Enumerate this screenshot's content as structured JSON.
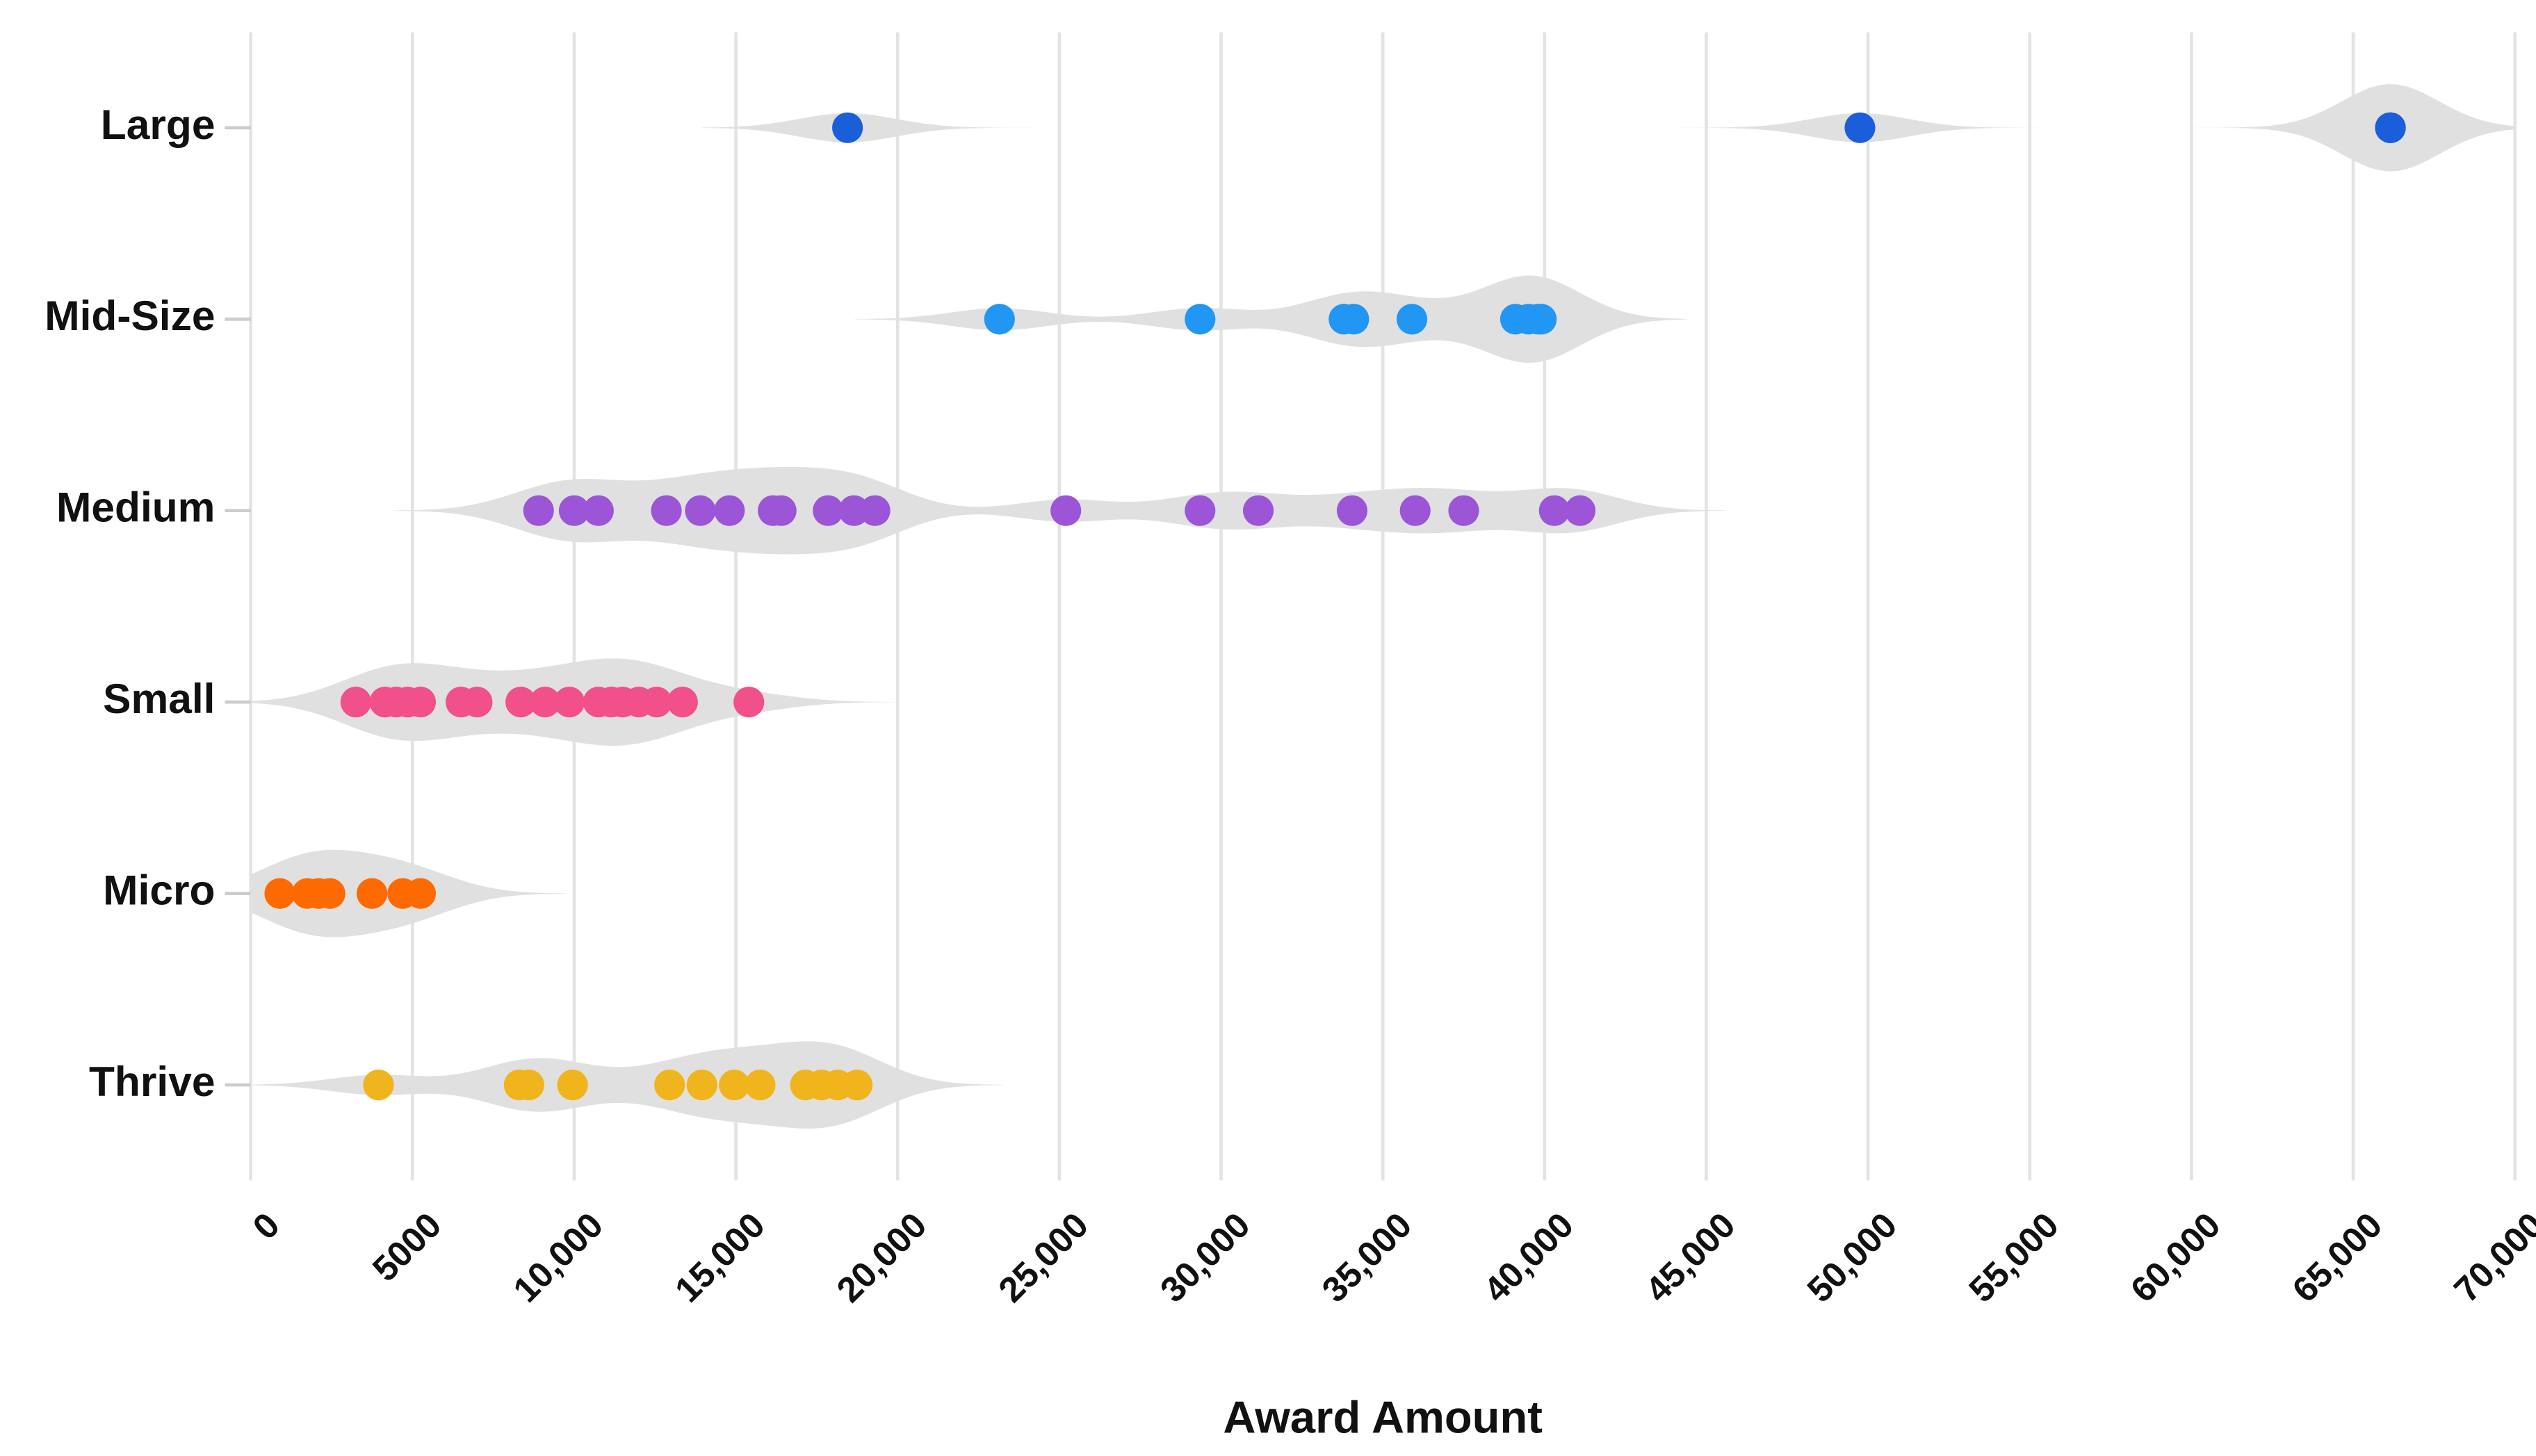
{
  "chart_data": {
    "type": "strip",
    "x_label": "Award Amount",
    "xlim": [
      0,
      70000
    ],
    "xticks": [
      0,
      5000,
      {
        "value": 10000,
        "label": "10,000"
      },
      {
        "value": 15000,
        "label": "15,000"
      },
      {
        "value": 20000,
        "label": "20,000"
      },
      {
        "value": 25000,
        "label": "25,000"
      },
      {
        "value": 30000,
        "label": "30,000"
      },
      {
        "value": 35000,
        "label": "35,000"
      },
      {
        "value": 40000,
        "label": "40,000"
      },
      {
        "value": 45000,
        "label": "45,000"
      },
      {
        "value": 50000,
        "label": "50,000"
      },
      {
        "value": 55000,
        "label": "55,000"
      },
      {
        "value": 60000,
        "label": "60,000"
      },
      {
        "value": 65000,
        "label": "65,000"
      },
      {
        "value": 70000,
        "label": "70,000"
      }
    ],
    "grid": true,
    "violin": true,
    "series": [
      {
        "name": "Large",
        "color": "#1a5fd9",
        "values": [
          18450,
          49750,
          66150,
          66150,
          66150
        ]
      },
      {
        "name": "Mid-Size",
        "color": "#2196f3",
        "values": [
          23150,
          29350,
          33800,
          34100,
          35900,
          39100,
          39500,
          39800,
          39900
        ]
      },
      {
        "name": "Medium",
        "color": "#9b55d6",
        "values": [
          8900,
          10000,
          10750,
          12850,
          13900,
          14800,
          16150,
          16400,
          17850,
          18650,
          19300,
          25200,
          29350,
          31150,
          34050,
          36000,
          37500,
          40300,
          41100
        ]
      },
      {
        "name": "Small",
        "color": "#f2508a",
        "values": [
          3250,
          4150,
          4500,
          4850,
          5250,
          6500,
          7000,
          8350,
          9100,
          9850,
          10750,
          11150,
          11500,
          12000,
          12550,
          13350,
          15400
        ]
      },
      {
        "name": "Micro",
        "color": "#ff6a00",
        "values": [
          900,
          1750,
          2100,
          2450,
          3750,
          4700,
          5250
        ]
      },
      {
        "name": "Thrive",
        "color": "#f0b41c",
        "values": [
          3950,
          8300,
          8600,
          9950,
          12950,
          13950,
          14950,
          15750,
          17150,
          17650,
          18150,
          18750
        ]
      }
    ]
  }
}
